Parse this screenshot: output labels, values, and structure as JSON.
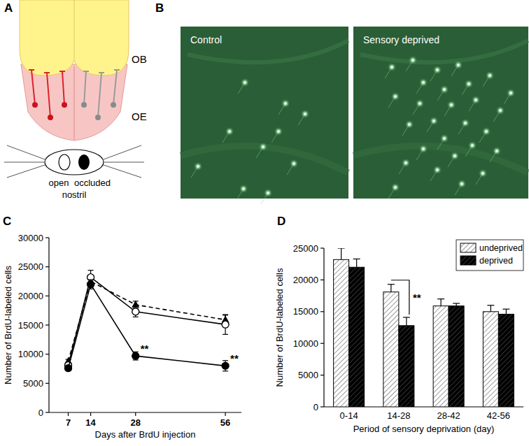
{
  "figure": {
    "panel_labels": [
      "A",
      "B",
      "C",
      "D"
    ]
  },
  "diagram": {
    "bulb_label": "OB",
    "epithelium_label": "OE",
    "nostril_labels": [
      "open",
      "occluded"
    ],
    "nostril_title": "nostril"
  },
  "micrographs": {
    "labels": [
      "Control",
      "Sensory deprived"
    ]
  },
  "chart_data": [
    {
      "type": "line",
      "x_label": "Days after BrdU injection",
      "y_label": "Number of BrdU-labeled cells",
      "x": [
        7,
        14,
        28,
        56
      ],
      "xlim": [
        1,
        61
      ],
      "xticks": [
        7,
        14,
        28,
        56
      ],
      "ylim": [
        0,
        30000
      ],
      "yticks": [
        0,
        5000,
        10000,
        15000,
        20000,
        25000,
        30000
      ],
      "series": [
        {
          "color": "#000000",
          "marker": "filled-circle",
          "line_style": "solid",
          "values": [
            7600,
            22000,
            9700,
            8000
          ],
          "errors": [
            400,
            800,
            700,
            900
          ]
        },
        {
          "color": "#000000",
          "marker": "open-circle",
          "line_style": "solid",
          "values": [
            8100,
            23200,
            17300,
            15100
          ],
          "errors": [
            300,
            1200,
            900,
            1700
          ]
        },
        {
          "color": "#000000",
          "marker": "filled-triangle",
          "line_style": "dashed",
          "values": [
            8800,
            22500,
            18500,
            15900
          ],
          "errors": [
            300,
            700,
            600,
            800
          ]
        }
      ],
      "annotations": [
        {
          "text": "**",
          "x": 28
        },
        {
          "text": "**",
          "x": 56
        }
      ]
    },
    {
      "type": "bar",
      "x_label": "Period of sensory deprivation (day)",
      "y_label": "Number of BrdU-labeled cells",
      "categories": [
        "0-14",
        "14-28",
        "28-42",
        "42-56"
      ],
      "ylim": [
        0,
        25000
      ],
      "yticks": [
        0,
        5000,
        10000,
        15000,
        20000,
        25000
      ],
      "legend": "upper-right",
      "series": [
        {
          "name": "undeprived",
          "color": "#ffffff",
          "values": [
            23200,
            18100,
            15900,
            15000
          ],
          "errors": [
            1800,
            1200,
            1100,
            1000
          ]
        },
        {
          "name": "deprived",
          "color": "#000000",
          "values": [
            22000,
            12800,
            15900,
            14600
          ],
          "errors": [
            1300,
            1300,
            400,
            800
          ]
        }
      ],
      "annotations": [
        {
          "text": "**",
          "category": "14-28"
        }
      ]
    }
  ]
}
